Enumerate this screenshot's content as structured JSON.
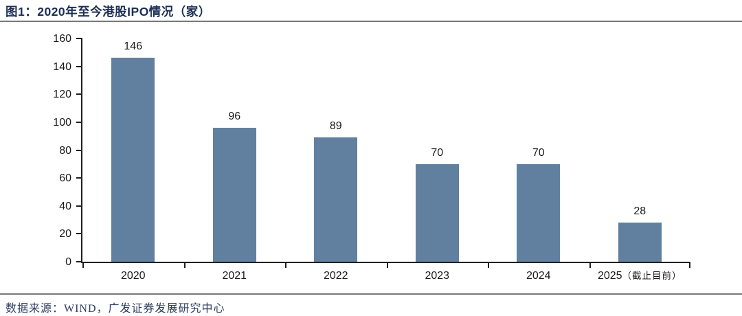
{
  "page": {
    "title": "图1：2020年至今港股IPO情况（家）",
    "source": "数据来源：WIND，广发证券发展研究中心"
  },
  "chart_data": {
    "type": "bar",
    "title": "图1：2020年至今港股IPO情况（家）",
    "categories": [
      "2020",
      "2021",
      "2022",
      "2023",
      "2024",
      "2025（截止目前）"
    ],
    "values": [
      146,
      96,
      89,
      70,
      70,
      28
    ],
    "data_labels": [
      "146",
      "96",
      "89",
      "70",
      "70",
      "28"
    ],
    "xlabel": "",
    "ylabel": "",
    "ylim": [
      0,
      160
    ],
    "yticks": [
      0,
      20,
      40,
      60,
      80,
      100,
      120,
      140,
      160
    ],
    "grid": false,
    "legend_position": "none",
    "bar_color": "#61809F",
    "axis_color": "#1F1F1F",
    "tick_label_color": "#1A1A1A"
  },
  "colors": {
    "title_text": "#1C2E55",
    "divider": "#787878",
    "source_text": "#2E3E5E",
    "background": "#FFFFFF"
  }
}
